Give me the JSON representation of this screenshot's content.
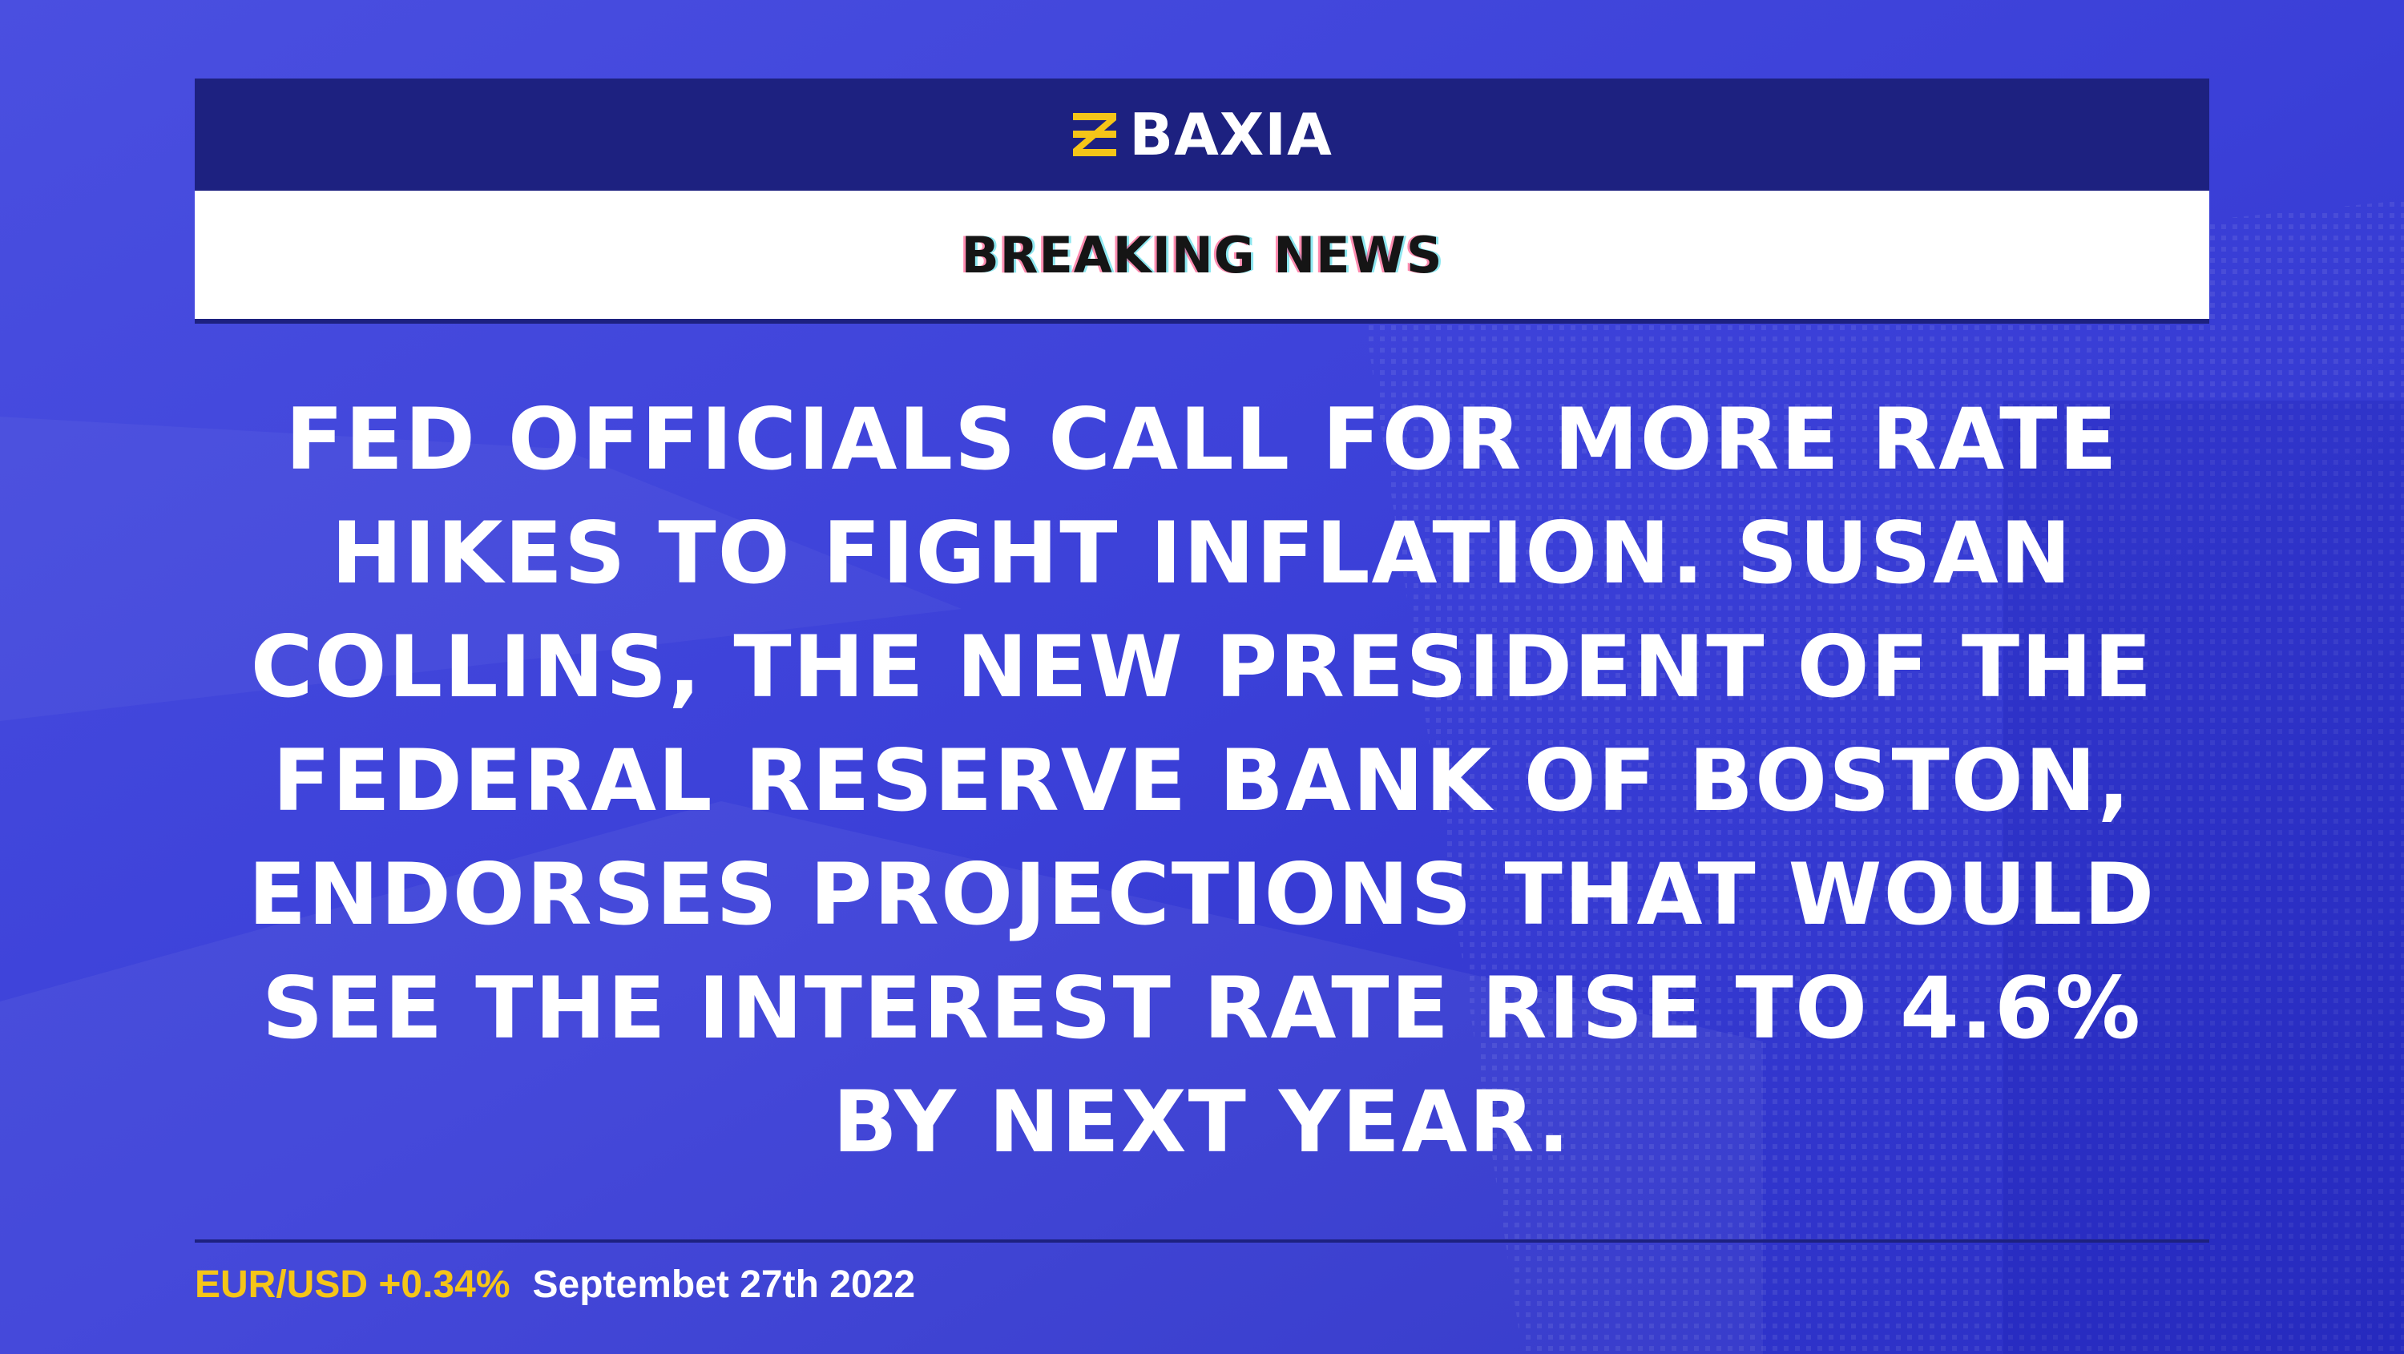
{
  "colors": {
    "background": "#3a3fd6",
    "header_bar": "#1d2180",
    "accent_yellow": "#f5c518",
    "text_white": "#ffffff"
  },
  "brand": {
    "logo_icon": "baxia-logo-icon",
    "name": "BAXIA"
  },
  "section_label": "BREAKING NEWS",
  "headline": "FED OFFICIALS CALL FOR MORE RATE HIKES TO FIGHT INFLATION. SUSAN COLLINS, THE NEW PRESIDENT OF THE FEDERAL RESERVE BANK OF BOSTON, ENDORSES PROJECTIONS THAT WOULD SEE THE INTEREST RATE RISE TO 4.6% BY NEXT YEAR.",
  "footer": {
    "ticker": "EUR/USD +0.34%",
    "date": "Septembet 27th 2022"
  }
}
